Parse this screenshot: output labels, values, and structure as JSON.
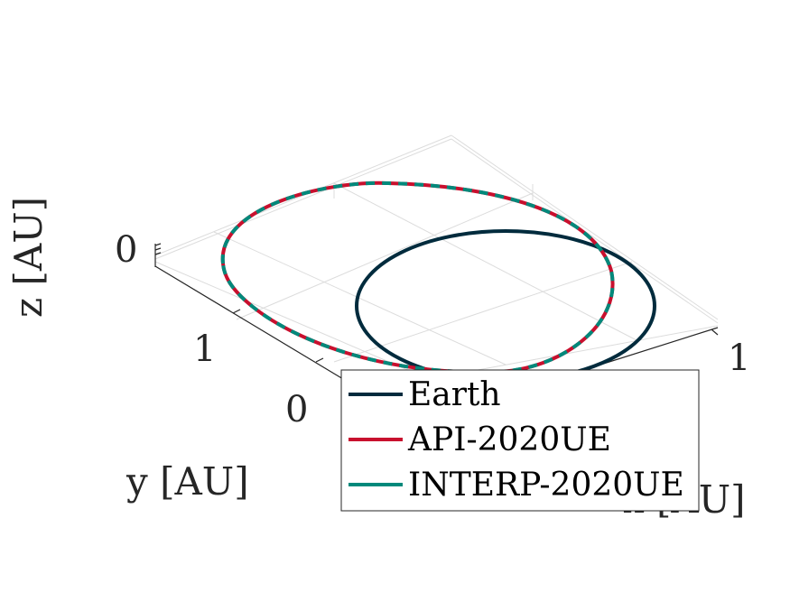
{
  "chart_data": {
    "type": "line",
    "projection": "3d",
    "title": "",
    "xlabel": "x [AU]",
    "ylabel": "y [AU]",
    "zlabel": "z [AU]",
    "x_ticks": [
      "1"
    ],
    "y_ticks": [
      "1",
      "0"
    ],
    "z_ticks": [
      "0"
    ],
    "grid": true,
    "legend_position": "bottom-right",
    "series": [
      {
        "name": "Earth",
        "color": "#002B3D",
        "line": "solid",
        "shape": "circular orbit",
        "semi_major_axis_au": 1.0
      },
      {
        "name": "API-2020UE",
        "color": "#C8102E",
        "line": "solid",
        "shape": "elliptical orbit"
      },
      {
        "name": "INTERP-2020UE",
        "color": "#00897B",
        "line": "dashed",
        "shape": "elliptical orbit"
      }
    ]
  }
}
